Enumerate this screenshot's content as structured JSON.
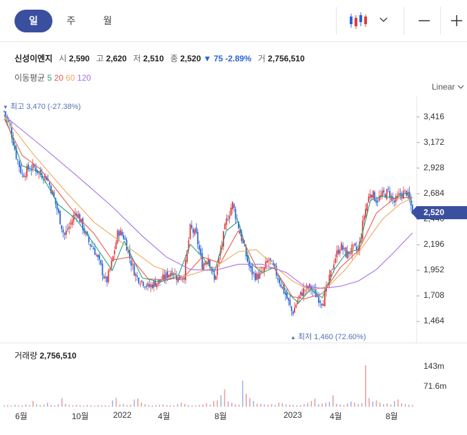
{
  "period_tabs": [
    {
      "label": "일"
    },
    {
      "label": "주"
    },
    {
      "label": "월"
    }
  ],
  "stock": {
    "name": "신성이엔지",
    "open_label": "시",
    "open": "2,590",
    "high_label": "고",
    "high": "2,620",
    "low_label": "저",
    "low": "2,510",
    "close_label": "종",
    "close": "2,520",
    "change": "▼ 75 -2.89%",
    "volume_label": "거",
    "volume": "2,756,510"
  },
  "ma_legend": {
    "title": "이동평균",
    "p5": "5",
    "p20": "20",
    "p60": "60",
    "p120": "120"
  },
  "scale_mode": "Linear",
  "icons": {
    "chart_type": "candlestick-icon",
    "dropdown": "chevron-down-icon",
    "zoom_out": "minus-icon",
    "zoom_in": "plus-icon"
  },
  "colors": {
    "up": "#e03a3a",
    "down": "#2a63d9",
    "accent": "#3b4fa0",
    "ma5": "#1fa37a",
    "ma20": "#e85a4f",
    "ma60": "#f2a65a",
    "ma120": "#a86ee8",
    "volume": "#e8a0a0"
  },
  "annotations": {
    "high": "최고 3,470 (-27.38%)",
    "low": "최저 1,460 (72.60%)"
  },
  "last_price_tag": "2,520",
  "volume_panel": {
    "title": "거래량",
    "value": "2,756,510",
    "ticks": [
      "143m",
      "71.6m"
    ]
  },
  "chart_data": {
    "type": "line",
    "y_axis": {
      "ticks": [
        "3,416",
        "3,172",
        "2,928",
        "2,684",
        "2,440",
        "2,196",
        "1,952",
        "1,708",
        "1,464"
      ],
      "range": [
        1400,
        3480
      ]
    },
    "x_axis": {
      "ticks": [
        "6월",
        "10월",
        "2022",
        "4월",
        "8월",
        "2023",
        "4월",
        "8월"
      ]
    },
    "series": [
      {
        "name": "close",
        "points": [
          [
            0,
            3470
          ],
          [
            2,
            3320
          ],
          [
            4,
            3050
          ],
          [
            6,
            2860
          ],
          [
            8,
            2920
          ],
          [
            10,
            2940
          ],
          [
            12,
            2870
          ],
          [
            14,
            2850
          ],
          [
            16,
            2700
          ],
          [
            18,
            2500
          ],
          [
            20,
            2280
          ],
          [
            22,
            2390
          ],
          [
            24,
            2520
          ],
          [
            26,
            2380
          ],
          [
            28,
            2230
          ],
          [
            30,
            2150
          ],
          [
            32,
            2000
          ],
          [
            34,
            1830
          ],
          [
            36,
            2040
          ],
          [
            38,
            2330
          ],
          [
            40,
            2270
          ],
          [
            42,
            2050
          ],
          [
            44,
            1890
          ],
          [
            46,
            1850
          ],
          [
            48,
            1790
          ],
          [
            50,
            1830
          ],
          [
            52,
            1850
          ],
          [
            54,
            1900
          ],
          [
            56,
            1950
          ],
          [
            58,
            1870
          ],
          [
            60,
            1910
          ],
          [
            62,
            2360
          ],
          [
            64,
            2280
          ],
          [
            66,
            2000
          ],
          [
            68,
            2080
          ],
          [
            70,
            1850
          ],
          [
            72,
            2130
          ],
          [
            74,
            2420
          ],
          [
            76,
            2590
          ],
          [
            78,
            2380
          ],
          [
            80,
            2150
          ],
          [
            82,
            1950
          ],
          [
            84,
            1890
          ],
          [
            86,
            1920
          ],
          [
            88,
            2060
          ],
          [
            90,
            1960
          ],
          [
            92,
            1830
          ],
          [
            94,
            1700
          ],
          [
            96,
            1540
          ],
          [
            98,
            1690
          ],
          [
            100,
            1770
          ],
          [
            102,
            1790
          ],
          [
            104,
            1710
          ],
          [
            106,
            1650
          ],
          [
            108,
            1830
          ],
          [
            110,
            2060
          ],
          [
            112,
            2190
          ],
          [
            114,
            2100
          ],
          [
            116,
            2160
          ],
          [
            118,
            2140
          ],
          [
            120,
            2500
          ],
          [
            122,
            2710
          ],
          [
            124,
            2620
          ],
          [
            126,
            2670
          ],
          [
            128,
            2700
          ],
          [
            130,
            2600
          ],
          [
            132,
            2680
          ],
          [
            134,
            2700
          ],
          [
            136,
            2520
          ]
        ]
      },
      {
        "name": "MA5",
        "points": [
          [
            0,
            3440
          ],
          [
            6,
            2950
          ],
          [
            12,
            2890
          ],
          [
            18,
            2580
          ],
          [
            24,
            2440
          ],
          [
            30,
            2200
          ],
          [
            36,
            1950
          ],
          [
            40,
            2230
          ],
          [
            46,
            1880
          ],
          [
            52,
            1840
          ],
          [
            58,
            1900
          ],
          [
            62,
            2200
          ],
          [
            66,
            2080
          ],
          [
            70,
            1930
          ],
          [
            74,
            2330
          ],
          [
            78,
            2420
          ],
          [
            82,
            2020
          ],
          [
            86,
            1930
          ],
          [
            90,
            1980
          ],
          [
            94,
            1750
          ],
          [
            98,
            1640
          ],
          [
            102,
            1770
          ],
          [
            106,
            1690
          ],
          [
            110,
            1960
          ],
          [
            114,
            2120
          ],
          [
            118,
            2150
          ],
          [
            122,
            2620
          ],
          [
            126,
            2660
          ],
          [
            130,
            2640
          ],
          [
            134,
            2690
          ],
          [
            136,
            2600
          ]
        ]
      },
      {
        "name": "MA20",
        "points": [
          [
            0,
            3400
          ],
          [
            6,
            3050
          ],
          [
            12,
            2920
          ],
          [
            18,
            2700
          ],
          [
            24,
            2480
          ],
          [
            30,
            2300
          ],
          [
            36,
            2050
          ],
          [
            42,
            2080
          ],
          [
            48,
            1870
          ],
          [
            54,
            1860
          ],
          [
            60,
            1890
          ],
          [
            66,
            2080
          ],
          [
            72,
            2020
          ],
          [
            78,
            2330
          ],
          [
            84,
            1980
          ],
          [
            90,
            1970
          ],
          [
            96,
            1700
          ],
          [
            100,
            1680
          ],
          [
            106,
            1730
          ],
          [
            112,
            1980
          ],
          [
            118,
            2140
          ],
          [
            124,
            2500
          ],
          [
            130,
            2640
          ],
          [
            136,
            2650
          ]
        ]
      },
      {
        "name": "MA60",
        "points": [
          [
            0,
            3420
          ],
          [
            10,
            3050
          ],
          [
            20,
            2720
          ],
          [
            30,
            2410
          ],
          [
            40,
            2200
          ],
          [
            50,
            1990
          ],
          [
            60,
            1890
          ],
          [
            70,
            1980
          ],
          [
            78,
            2130
          ],
          [
            84,
            2150
          ],
          [
            90,
            1990
          ],
          [
            96,
            1850
          ],
          [
            102,
            1760
          ],
          [
            108,
            1800
          ],
          [
            114,
            1970
          ],
          [
            120,
            2200
          ],
          [
            126,
            2440
          ],
          [
            132,
            2590
          ],
          [
            136,
            2640
          ]
        ]
      },
      {
        "name": "MA120",
        "points": [
          [
            0,
            3430
          ],
          [
            12,
            3150
          ],
          [
            24,
            2860
          ],
          [
            36,
            2560
          ],
          [
            46,
            2280
          ],
          [
            54,
            2080
          ],
          [
            62,
            1960
          ],
          [
            70,
            1950
          ],
          [
            78,
            2010
          ],
          [
            86,
            2010
          ],
          [
            94,
            1930
          ],
          [
            100,
            1800
          ],
          [
            106,
            1780
          ],
          [
            112,
            1800
          ],
          [
            118,
            1850
          ],
          [
            124,
            1960
          ],
          [
            130,
            2130
          ],
          [
            136,
            2310
          ]
        ]
      }
    ],
    "volume_values": [
      5,
      6,
      4,
      7,
      5,
      5,
      8,
      6,
      20,
      9,
      6,
      7,
      14,
      6,
      5,
      9,
      30,
      10,
      6,
      5,
      7,
      5,
      4,
      6,
      5,
      4,
      6,
      5,
      5,
      4,
      22,
      30,
      8,
      9,
      6,
      7,
      25,
      28,
      14,
      9,
      6,
      5,
      6,
      7,
      8,
      6,
      5,
      5,
      9,
      14,
      10,
      6,
      5,
      5,
      6,
      8,
      12,
      7,
      20,
      22,
      40,
      60,
      18,
      14,
      9,
      7,
      90,
      45,
      30,
      20,
      11,
      10,
      8,
      7,
      9,
      6,
      14,
      12,
      8,
      7,
      6,
      5,
      6,
      9,
      13,
      20,
      28,
      9,
      11,
      14,
      17,
      40,
      10,
      8,
      6,
      12,
      18,
      14,
      10,
      12,
      143,
      30,
      18,
      22,
      14,
      9,
      12,
      8,
      20,
      25,
      12,
      9,
      7,
      6
    ]
  }
}
